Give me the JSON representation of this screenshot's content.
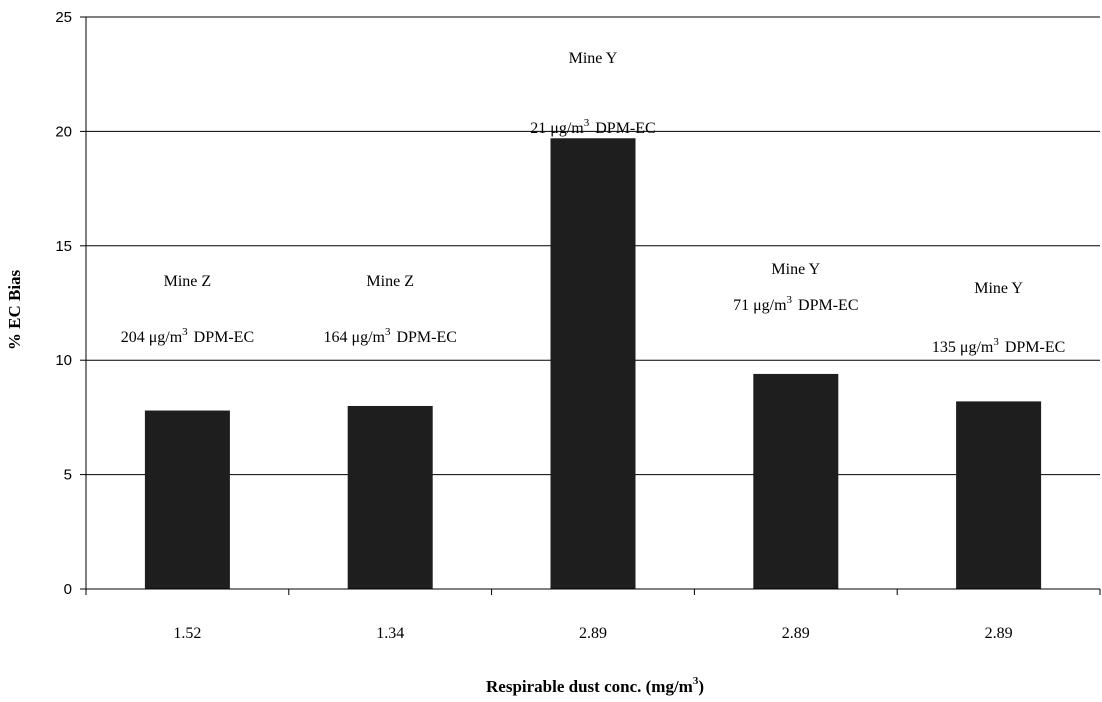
{
  "chart_data": {
    "type": "bar",
    "categories": [
      "1.52",
      "1.34",
      "2.89",
      "2.89",
      "2.89"
    ],
    "values": [
      7.8,
      8.0,
      19.7,
      9.4,
      8.2
    ],
    "ylim": [
      0,
      25
    ],
    "yticks": [
      0,
      5,
      10,
      15,
      20,
      25
    ],
    "grid": true,
    "ylabel": "% EC Bias",
    "xlabel": {
      "main": "Respirable dust conc. (mg/m",
      "sup": "3",
      "close": ")"
    },
    "bar_color": "#1e1e1e",
    "annotations": [
      {
        "mine": "Mine Z",
        "conc": "204 μg/m",
        "sup": "3",
        "suffix": "DPM-EC"
      },
      {
        "mine": "Mine Z",
        "conc": "164 μg/m",
        "sup": "3",
        "suffix": "DPM-EC"
      },
      {
        "mine": "Mine Y",
        "conc": "21 μg/m",
        "sup": "3",
        "suffix": "DPM-EC"
      },
      {
        "mine": "Mine Y",
        "conc": "71 μg/m",
        "sup": "3",
        "suffix": "DPM-EC"
      },
      {
        "mine": "Mine Y",
        "conc": "135 μg/m",
        "sup": "3",
        "suffix": "DPM-EC"
      }
    ]
  }
}
